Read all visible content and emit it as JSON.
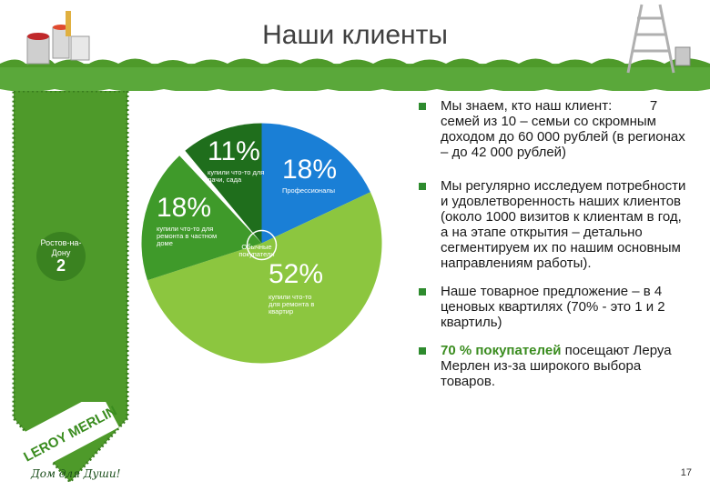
{
  "title": "Наши клиенты",
  "city": {
    "label": "Ростов-на-Дону",
    "number": "2"
  },
  "pie": [
    {
      "percent": "11%",
      "label": "купили что-то для дачи, сада",
      "color": "#1f6e1c"
    },
    {
      "percent": "18%",
      "label": "Профессионалы",
      "color": "#1a7fd6"
    },
    {
      "percent": "52%",
      "label": "купили что-то для ремонта в квартир",
      "color": "#8cc63f"
    },
    {
      "percent": "18%",
      "label": "купили что-то для ремонта в частном доме",
      "color": "#3f9a2a"
    }
  ],
  "center_label": "Обычные покупатели",
  "bullets": [
    {
      "text": "Мы знаем, кто наш клиент:          7 семей из 10 – семьи со скромным доходом до 60 000 рублей (в регионах – до 42 000 рублей)"
    },
    {
      "text": "Мы регулярно исследуем потребности и удовлетворенность наших клиентов (около 1000 визитов к клиентам в год, а на этапе открытия – детально сегментируем их по нашим основным направлениям работы)."
    },
    {
      "text": "Наше товарное предложение – в 4 ценовых квартилях (70% - это 1 и 2 квартиль)"
    },
    {
      "accent": "70 % покупателей",
      "text": " посещают Леруа Мерлен из-за широкого выбора товаров."
    }
  ],
  "logo_text": "LEROY MERLIN",
  "slogan": "Дом для Души!",
  "page_number": "17",
  "colors": {
    "accent_green": "#3a8c1f",
    "bullet_square": "#2e8b2e",
    "grass": "#4e9a2a"
  }
}
